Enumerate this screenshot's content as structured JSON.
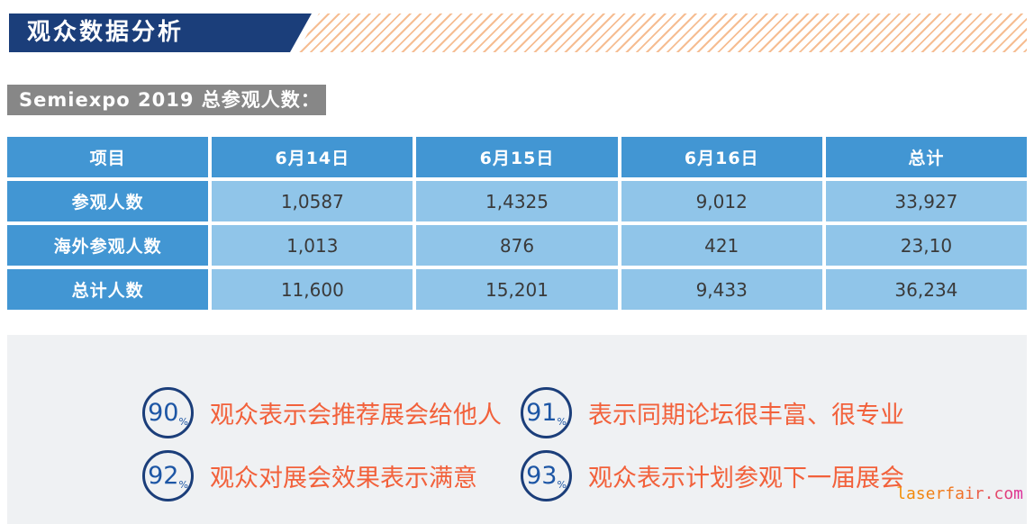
{
  "header": {
    "title": "观众数据分析",
    "subtitle": "Semiexpo 2019 总参观人数："
  },
  "table": {
    "headers": [
      "项目",
      "6月14日",
      "6月15日",
      "6月16日",
      "总计"
    ],
    "rows": [
      {
        "label": "参观人数",
        "values": [
          "1,0587",
          "1,4325",
          "9,012",
          "33,927"
        ]
      },
      {
        "label": "海外参观人数",
        "values": [
          "1,013",
          "876",
          "421",
          "23,10"
        ]
      },
      {
        "label": "总计人数",
        "values": [
          "11,600",
          "15,201",
          "9,433",
          "36,234"
        ]
      }
    ]
  },
  "stats": [
    {
      "value": "90",
      "unit": "%",
      "label": "观众表示会推荐展会给他人"
    },
    {
      "value": "91",
      "unit": "%",
      "label": "表示同期论坛很丰富、很专业"
    },
    {
      "value": "92",
      "unit": "%",
      "label": "观众对展会效果表示满意"
    },
    {
      "value": "93",
      "unit": "%",
      "label": "观众表示计划参观下一届展会"
    }
  ],
  "footer": {
    "watermark": "laserfair.com"
  },
  "colors": {
    "banner_navy": "#1b3e7a",
    "stripe_orange": "#f6bd92",
    "subtitle_gray": "#878787",
    "table_header_blue": "#4296d3",
    "table_cell_blue": "#90c5e9",
    "stat_circle_navy": "#1b3e7a",
    "stat_number_blue": "#1d56a5",
    "accent_orange": "#f2613b",
    "panel_gray": "#eff1f3",
    "watermark_gradient_start": "#f29100",
    "watermark_gradient_end": "#dc2a9d"
  }
}
